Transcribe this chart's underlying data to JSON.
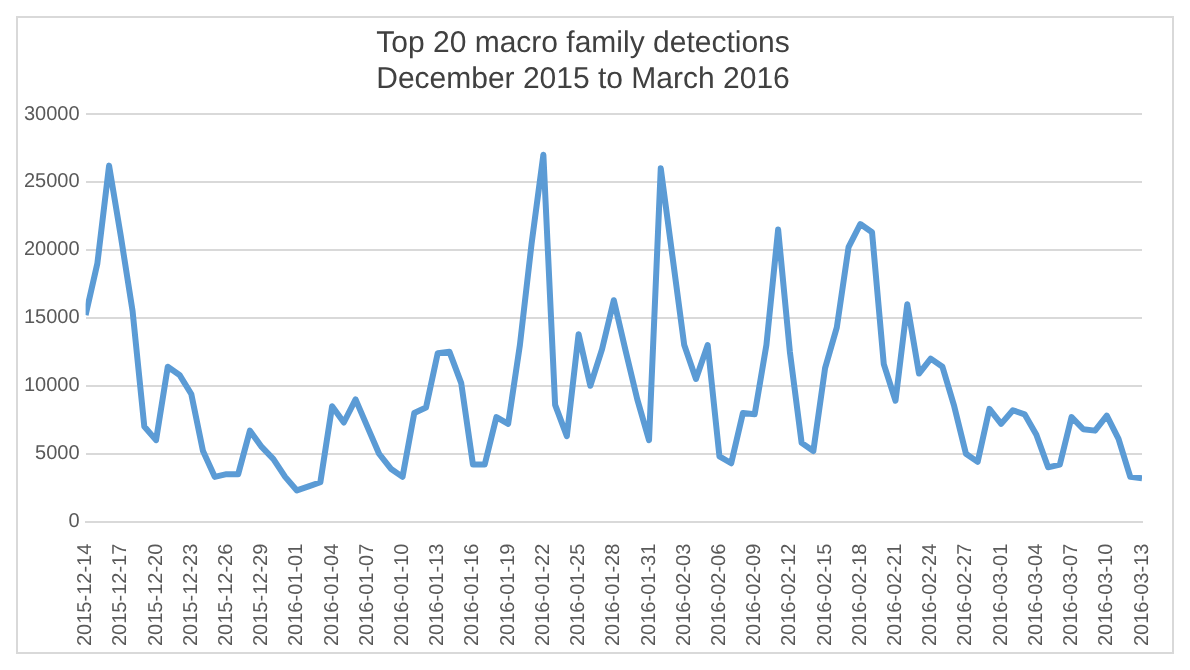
{
  "chart_data": {
    "type": "line",
    "title": [
      "Top 20 macro family detections",
      "December 2015 to March 2016"
    ],
    "x": [
      "2015-12-14",
      "2015-12-15",
      "2015-12-16",
      "2015-12-17",
      "2015-12-18",
      "2015-12-19",
      "2015-12-20",
      "2015-12-21",
      "2015-12-22",
      "2015-12-23",
      "2015-12-24",
      "2015-12-25",
      "2015-12-26",
      "2015-12-27",
      "2015-12-28",
      "2015-12-29",
      "2015-12-30",
      "2015-12-31",
      "2016-01-01",
      "2016-01-02",
      "2016-01-03",
      "2016-01-04",
      "2016-01-05",
      "2016-01-06",
      "2016-01-07",
      "2016-01-08",
      "2016-01-09",
      "2016-01-10",
      "2016-01-11",
      "2016-01-12",
      "2016-01-13",
      "2016-01-14",
      "2016-01-15",
      "2016-01-16",
      "2016-01-17",
      "2016-01-18",
      "2016-01-19",
      "2016-01-20",
      "2016-01-21",
      "2016-01-22",
      "2016-01-23",
      "2016-01-24",
      "2016-01-25",
      "2016-01-26",
      "2016-01-27",
      "2016-01-28",
      "2016-01-29",
      "2016-01-30",
      "2016-01-31",
      "2016-02-01",
      "2016-02-02",
      "2016-02-03",
      "2016-02-04",
      "2016-02-05",
      "2016-02-06",
      "2016-02-07",
      "2016-02-08",
      "2016-02-09",
      "2016-02-10",
      "2016-02-11",
      "2016-02-12",
      "2016-02-13",
      "2016-02-14",
      "2016-02-15",
      "2016-02-16",
      "2016-02-17",
      "2016-02-18",
      "2016-02-19",
      "2016-02-20",
      "2016-02-21",
      "2016-02-22",
      "2016-02-23",
      "2016-02-24",
      "2016-02-25",
      "2016-02-26",
      "2016-02-27",
      "2016-02-28",
      "2016-02-29",
      "2016-03-01",
      "2016-03-02",
      "2016-03-03",
      "2016-03-04",
      "2016-03-05",
      "2016-03-06",
      "2016-03-07",
      "2016-03-08",
      "2016-03-09",
      "2016-03-10",
      "2016-03-11",
      "2016-03-12",
      "2016-03-13"
    ],
    "series": [
      {
        "color": "#5b9bd5",
        "values": [
          15200,
          19000,
          26200,
          21000,
          15500,
          7000,
          6000,
          11400,
          10800,
          9400,
          5200,
          3300,
          3500,
          3500,
          6700,
          5500,
          4600,
          3300,
          2300,
          2600,
          2900,
          8500,
          7300,
          9000,
          7000,
          5000,
          3900,
          3300,
          8000,
          8400,
          12400,
          12500,
          10200,
          4200,
          4200,
          7700,
          7200,
          13000,
          20500,
          27000,
          8600,
          6300,
          13800,
          10000,
          12700,
          16300,
          12600,
          9000,
          6000,
          26000,
          19500,
          13000,
          10500,
          13000,
          4800,
          4300,
          8000,
          7900,
          13000,
          21500,
          12500,
          5800,
          5200,
          11300,
          14300,
          20200,
          21900,
          21300,
          11600,
          8900,
          16000,
          10900,
          12000,
          11400,
          8500,
          5000,
          4400,
          8300,
          7200,
          8200,
          7900,
          6400,
          4000,
          4200,
          7700,
          6800,
          6700,
          7800,
          6100,
          3300,
          3200
        ]
      }
    ],
    "xlim": [
      "2015-12-14",
      "2016-03-13"
    ],
    "xticks": [
      "2015-12-14",
      "2015-12-17",
      "2015-12-20",
      "2015-12-23",
      "2015-12-26",
      "2015-12-29",
      "2016-01-01",
      "2016-01-04",
      "2016-01-07",
      "2016-01-10",
      "2016-01-13",
      "2016-01-16",
      "2016-01-19",
      "2016-01-22",
      "2016-01-25",
      "2016-01-28",
      "2016-01-31",
      "2016-02-03",
      "2016-02-06",
      "2016-02-09",
      "2016-02-12",
      "2016-02-15",
      "2016-02-18",
      "2016-02-21",
      "2016-02-24",
      "2016-02-27",
      "2016-03-01",
      "2016-03-04",
      "2016-03-07",
      "2016-03-10",
      "2016-03-13"
    ],
    "ylim": [
      0,
      30000
    ],
    "yticks": [
      0,
      5000,
      10000,
      15000,
      20000,
      25000,
      30000
    ],
    "grid": "y",
    "legend": false,
    "marker": "none",
    "line_style": "solid"
  }
}
